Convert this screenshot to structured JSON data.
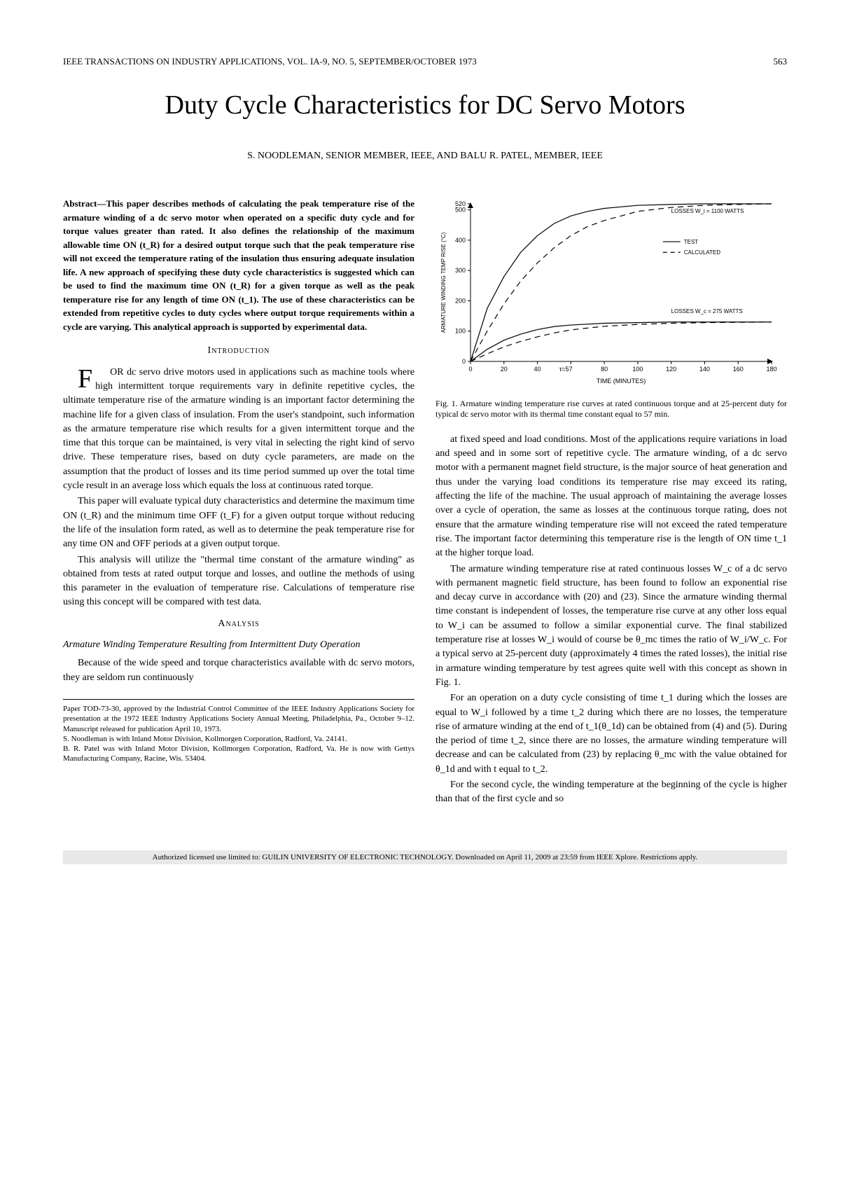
{
  "header": {
    "journal": "IEEE TRANSACTIONS ON INDUSTRY APPLICATIONS, VOL. IA-9, NO. 5, SEPTEMBER/OCTOBER 1973",
    "page": "563"
  },
  "title": "Duty Cycle Characteristics for DC Servo Motors",
  "authors_line": "S. NOODLEMAN, SENIOR MEMBER, IEEE, AND BALU R. PATEL, MEMBER, IEEE",
  "abstract": "Abstract—This paper describes methods of calculating the peak temperature rise of the armature winding of a dc servo motor when operated on a specific duty cycle and for torque values greater than rated. It also defines the relationship of the maximum allowable time ON (t_R) for a desired output torque such that the peak temperature rise will not exceed the temperature rating of the insulation thus ensuring adequate insulation life. A new approach of specifying these duty cycle characteristics is suggested which can be used to find the maximum time ON (t_R) for a given torque as well as the peak temperature rise for any length of time ON (t_1). The use of these characteristics can be extended from repetitive cycles to duty cycles where output torque requirements within a cycle are varying. This analytical approach is supported by experimental data.",
  "sections": {
    "intro_head": "Introduction",
    "analysis_head": "Analysis",
    "subsection1": "Armature Winding Temperature Resulting from Intermittent Duty Operation"
  },
  "paragraphs": {
    "p1": "FOR dc servo drive motors used in applications such as machine tools where high intermittent torque requirements vary in definite repetitive cycles, the ultimate temperature rise of the armature winding is an important factor determining the machine life for a given class of insulation. From the user's standpoint, such information as the armature temperature rise which results for a given intermittent torque and the time that this torque can be maintained, is very vital in selecting the right kind of servo drive. These temperature rises, based on duty cycle parameters, are made on the assumption that the product of losses and its time period summed up over the total time cycle result in an average loss which equals the loss at continuous rated torque.",
    "p2": "This paper will evaluate typical duty characteristics and determine the maximum time ON (t_R) and the minimum time OFF (t_F) for a given output torque without reducing the life of the insulation form rated, as well as to determine the peak temperature rise for any time ON and OFF periods at a given output torque.",
    "p3": "This analysis will utilize the \"thermal time constant of the armature winding\" as obtained from tests at rated output torque and losses, and outline the methods of using this parameter in the evaluation of temperature rise. Calculations of temperature rise using this concept will be compared with test data.",
    "p4": "Because of the wide speed and torque characteristics available with dc servo motors, they are seldom run continuously",
    "p5": "at fixed speed and load conditions. Most of the applications require variations in load and speed and in some sort of repetitive cycle. The armature winding, of a dc servo motor with a permanent magnet field structure, is the major source of heat generation and thus under the varying load conditions its temperature rise may exceed its rating, affecting the life of the machine. The usual approach of maintaining the average losses over a cycle of operation, the same as losses at the continuous torque rating, does not ensure that the armature winding temperature rise will not exceed the rated temperature rise. The important factor determining this temperature rise is the length of ON time t_1 at the higher torque load.",
    "p6": "The armature winding temperature rise at rated continuous losses W_c of a dc servo with permanent magnetic field structure, has been found to follow an exponential rise and decay curve in accordance with (20) and (23). Since the armature winding thermal time constant is independent of losses, the temperature rise curve at any other loss equal to W_i can be assumed to follow a similar exponential curve. The final stabilized temperature rise at losses W_i would of course be θ_mc times the ratio of W_i/W_c. For a typical servo at 25-percent duty (approximately 4 times the rated losses), the initial rise in armature winding temperature by test agrees quite well with this concept as shown in Fig. 1.",
    "p7": "For an operation on a duty cycle consisting of time t_1 during which the losses are equal to W_i followed by a time t_2 during which there are no losses, the temperature rise of armature winding at the end of t_1(θ_1d) can be obtained from (4) and (5). During the period of time t_2, since there are no losses, the armature winding temperature will decrease and can be calculated from (23) by replacing θ_mc with the value obtained for θ_1d and with t equal to t_2.",
    "p8": "For the second cycle, the winding temperature at the beginning of the cycle is higher than that of the first cycle and so"
  },
  "footnote": {
    "l1": "Paper TOD-73-30, approved by the Industrial Control Committee of the IEEE Industry Applications Society for presentation at the 1972 IEEE Industry Applications Society Annual Meeting, Philadelphia, Pa., October 9–12. Manuscript released for publication April 10, 1973.",
    "l2": "S. Noodleman is with Inland Motor Division, Kollmorgen Corporation, Radford, Va. 24141.",
    "l3": "B. R. Patel was with Inland Motor Division, Kollmorgen Corporation, Radford, Va. He is now with Gettys Manufacturing Company, Racine, Wis. 53404."
  },
  "figure1": {
    "caption": "Fig. 1. Armature winding temperature rise curves at rated continuous torque and at 25-percent duty for typical dc servo motor with its thermal time constant equal to 57 min.",
    "type": "line",
    "xlabel": "TIME (MINUTES)",
    "ylabel": "ARMATURE WINDING TEMP RISE (°C)",
    "xlim": [
      0,
      180
    ],
    "ylim": [
      0,
      520
    ],
    "xticks": [
      0,
      20,
      40,
      60,
      80,
      100,
      120,
      140,
      160,
      180
    ],
    "xtick_labels": [
      "0",
      "20",
      "40",
      "",
      "80",
      "100",
      "120",
      "140",
      "160",
      "180"
    ],
    "tau_marker": {
      "x": 57,
      "label": "τ=57"
    },
    "yticks": [
      0,
      100,
      200,
      300,
      400,
      500,
      520
    ],
    "ytick_labels": [
      "0",
      "100",
      "200",
      "300",
      "400",
      "500",
      "520"
    ],
    "annotations": {
      "upper": "LOSSES W_i = 1100 WATTS",
      "lower": "LOSSES W_c = 275 WATTS"
    },
    "legend": {
      "test": "TEST",
      "calc": "CALCULATED"
    },
    "series": [
      {
        "name": "upper-test",
        "dash": "none",
        "points": [
          [
            0,
            0
          ],
          [
            10,
            175
          ],
          [
            20,
            280
          ],
          [
            30,
            360
          ],
          [
            40,
            415
          ],
          [
            50,
            455
          ],
          [
            60,
            480
          ],
          [
            70,
            495
          ],
          [
            80,
            505
          ],
          [
            100,
            515
          ],
          [
            120,
            518
          ],
          [
            140,
            520
          ],
          [
            160,
            520
          ],
          [
            180,
            520
          ]
        ]
      },
      {
        "name": "upper-calc",
        "dash": "8,6",
        "points": [
          [
            0,
            0
          ],
          [
            10,
            100
          ],
          [
            20,
            190
          ],
          [
            30,
            265
          ],
          [
            40,
            325
          ],
          [
            50,
            375
          ],
          [
            60,
            415
          ],
          [
            70,
            445
          ],
          [
            80,
            465
          ],
          [
            100,
            495
          ],
          [
            120,
            508
          ],
          [
            140,
            515
          ],
          [
            160,
            518
          ],
          [
            180,
            520
          ]
        ]
      },
      {
        "name": "lower-test",
        "dash": "none",
        "points": [
          [
            0,
            0
          ],
          [
            10,
            40
          ],
          [
            20,
            70
          ],
          [
            30,
            90
          ],
          [
            40,
            105
          ],
          [
            50,
            115
          ],
          [
            60,
            120
          ],
          [
            80,
            126
          ],
          [
            100,
            128
          ],
          [
            120,
            130
          ],
          [
            140,
            130
          ],
          [
            160,
            130
          ],
          [
            180,
            130
          ]
        ]
      },
      {
        "name": "lower-calc",
        "dash": "8,6",
        "points": [
          [
            0,
            0
          ],
          [
            10,
            25
          ],
          [
            20,
            48
          ],
          [
            30,
            66
          ],
          [
            40,
            81
          ],
          [
            50,
            94
          ],
          [
            60,
            104
          ],
          [
            80,
            116
          ],
          [
            100,
            122
          ],
          [
            120,
            126
          ],
          [
            140,
            128
          ],
          [
            160,
            129
          ],
          [
            180,
            130
          ]
        ]
      }
    ],
    "colors": {
      "axis": "#000000",
      "line": "#000000",
      "bg": "#ffffff"
    },
    "fontsize": 9
  },
  "footer": "Authorized licensed use limited to: GUILIN UNIVERSITY OF ELECTRONIC TECHNOLOGY. Downloaded on April 11, 2009 at 23:59 from IEEE Xplore. Restrictions apply."
}
